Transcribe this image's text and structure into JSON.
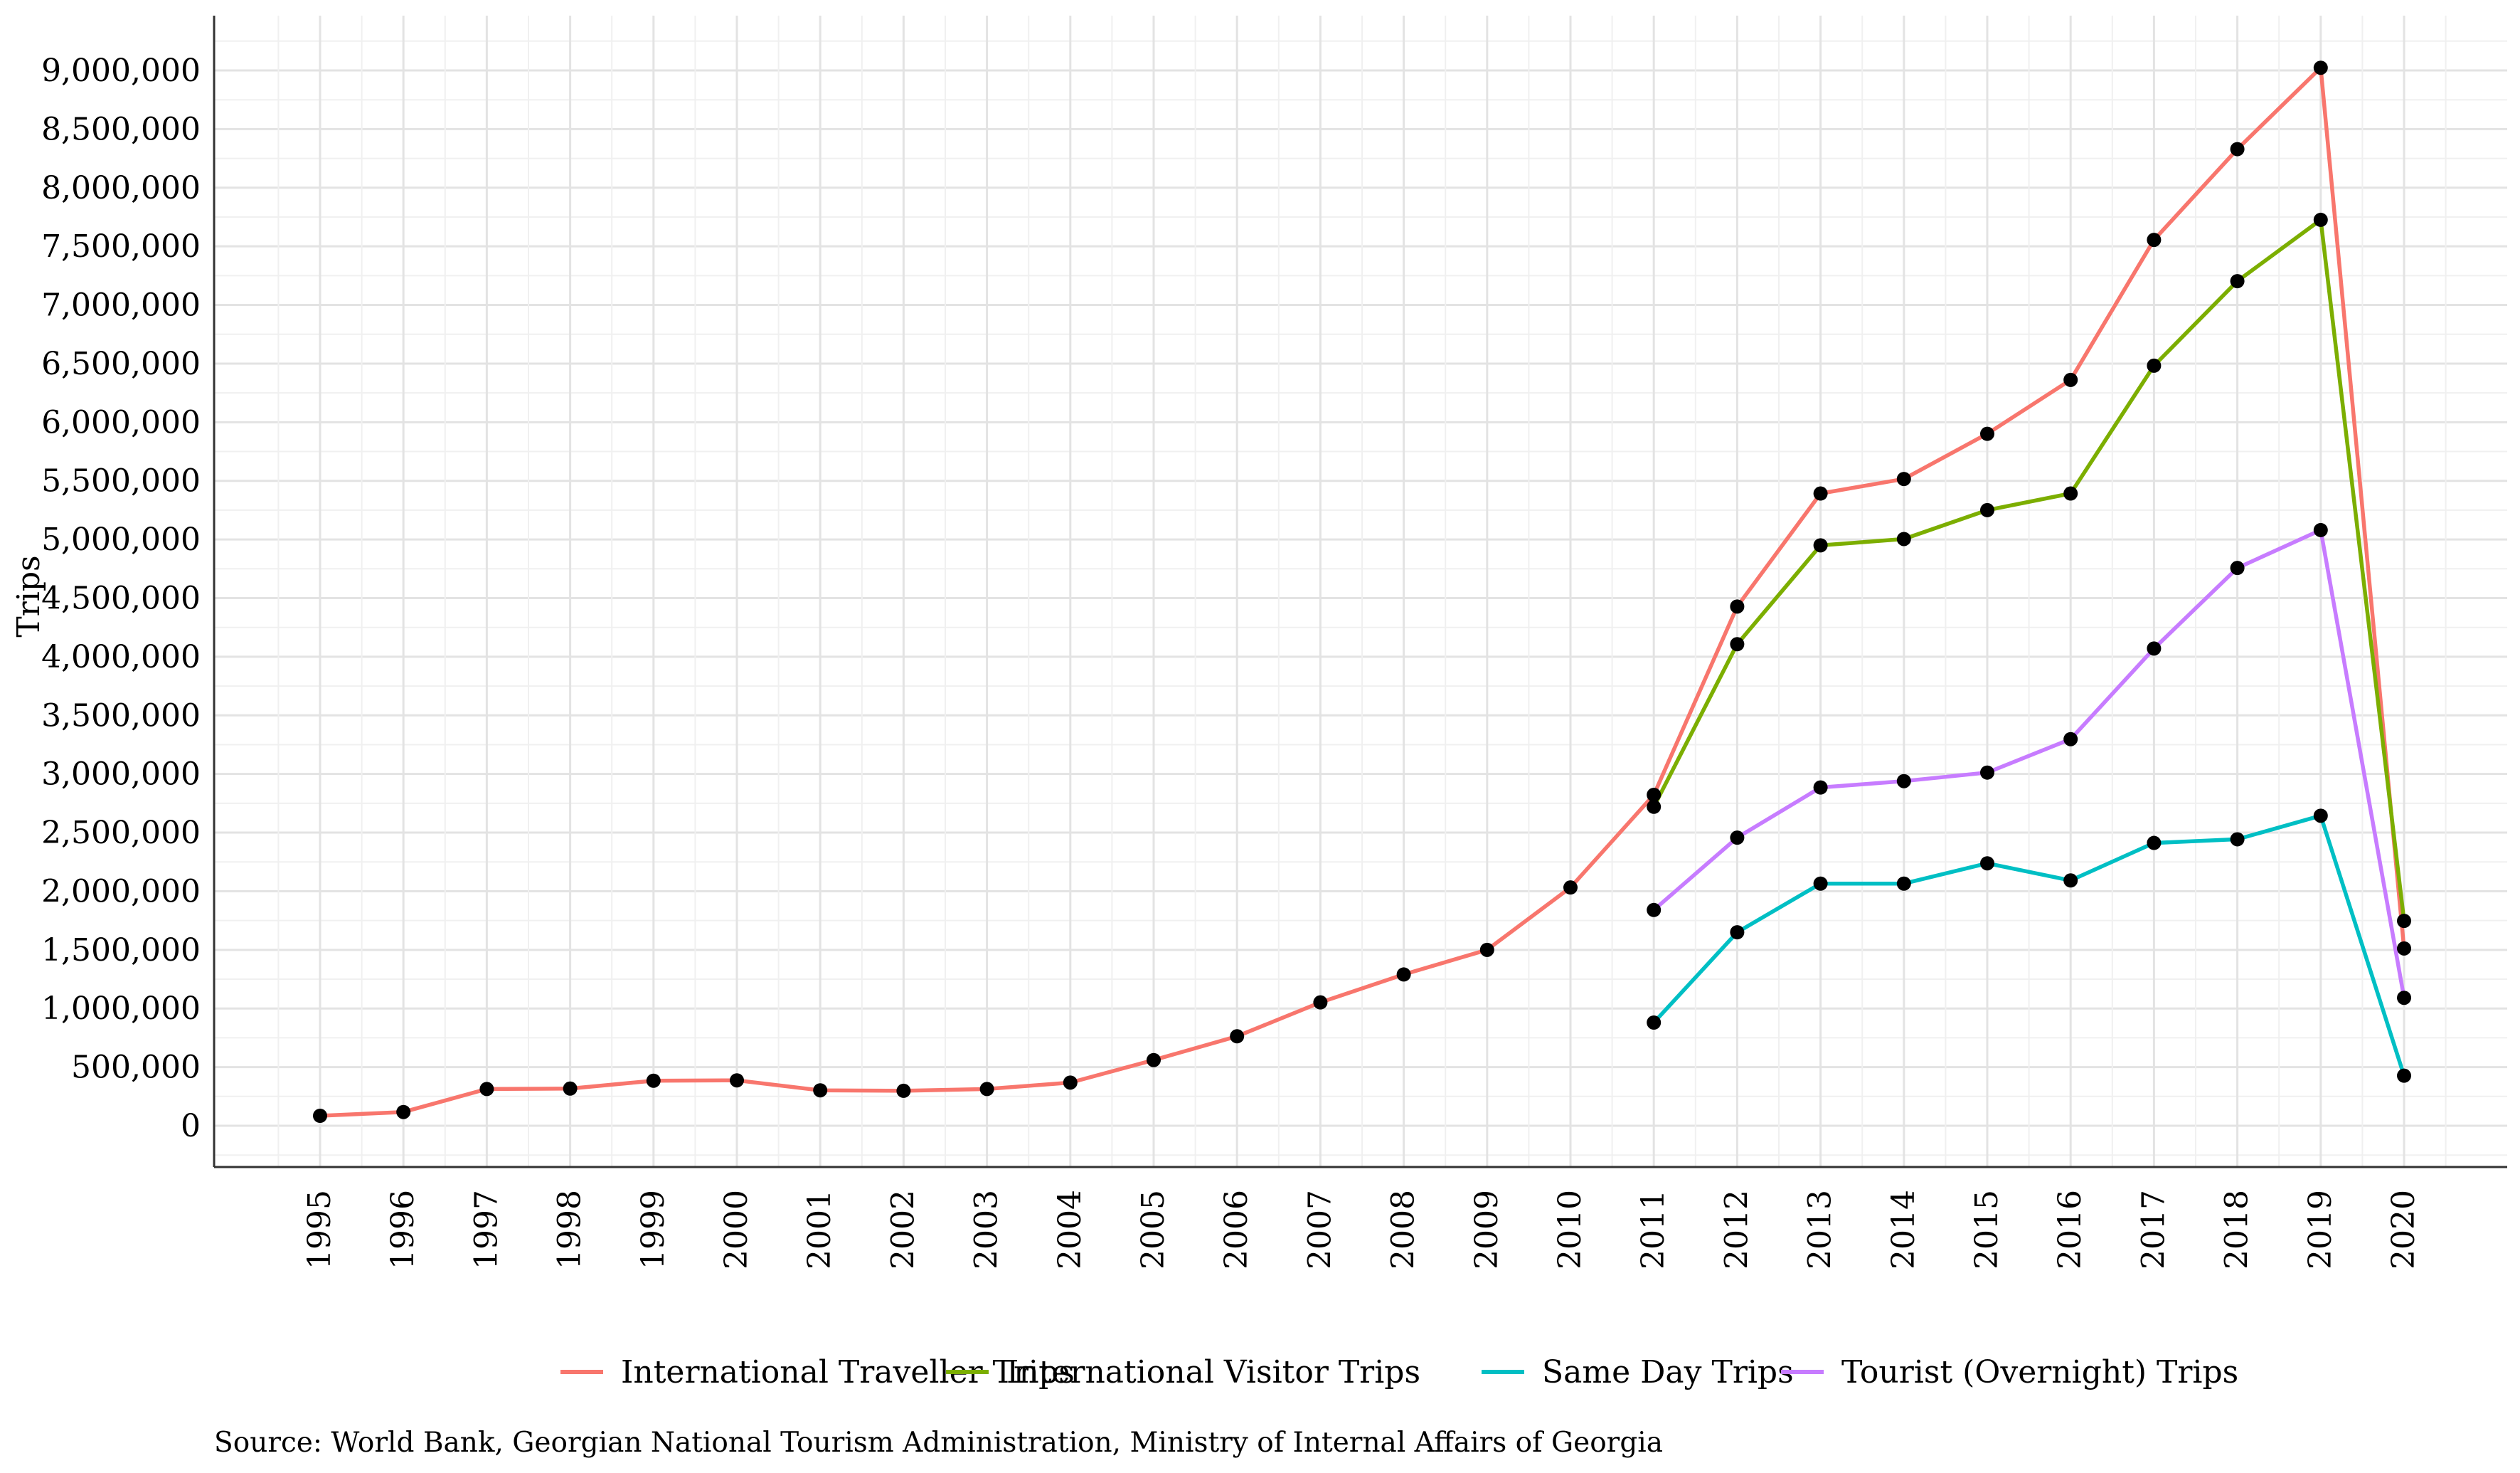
{
  "chart_data": {
    "type": "line",
    "title": "",
    "xlabel": "",
    "ylabel": "Trips",
    "ylim": [
      0,
      9000000
    ],
    "y_ticks": [
      0,
      500000,
      1000000,
      1500000,
      2000000,
      2500000,
      3000000,
      3500000,
      4000000,
      4500000,
      5000000,
      5500000,
      6000000,
      6500000,
      7000000,
      7500000,
      8000000,
      8500000,
      9000000
    ],
    "y_tick_labels": [
      "0",
      "500,000",
      "1,000,000",
      "1,500,000",
      "2,000,000",
      "2,500,000",
      "3,000,000",
      "3,500,000",
      "4,000,000",
      "4,500,000",
      "5,000,000",
      "5,500,000",
      "6,000,000",
      "6,500,000",
      "7,000,000",
      "7,500,000",
      "8,000,000",
      "8,500,000",
      "9,000,000"
    ],
    "x": [
      "1995",
      "1996",
      "1997",
      "1998",
      "1999",
      "2000",
      "2001",
      "2002",
      "2003",
      "2004",
      "2005",
      "2006",
      "2007",
      "2008",
      "2009",
      "2010",
      "2011",
      "2012",
      "2013",
      "2014",
      "2015",
      "2016",
      "2017",
      "2018",
      "2019",
      "2020"
    ],
    "grid": true,
    "legend_position": "bottom",
    "point_color": "#000000",
    "series": [
      {
        "name": "International Traveller Trips",
        "color": "#F8766D",
        "values": [
          85000,
          117000,
          313000,
          317000,
          384000,
          387000,
          302000,
          298000,
          313000,
          368000,
          560000,
          763000,
          1052000,
          1290000,
          1500000,
          2032000,
          2822000,
          4428000,
          5392000,
          5516000,
          5901000,
          6361000,
          7555000,
          8329000,
          9023000,
          1512000
        ]
      },
      {
        "name": "International Visitor Trips",
        "color": "#7CAE00",
        "values": [
          null,
          null,
          null,
          null,
          null,
          null,
          null,
          null,
          null,
          null,
          null,
          null,
          null,
          null,
          null,
          null,
          2720000,
          4107000,
          4950000,
          5004000,
          5250000,
          5392000,
          6482000,
          7203000,
          7726000,
          1747000
        ]
      },
      {
        "name": "Same Day Trips",
        "color": "#00BFC4",
        "values": [
          null,
          null,
          null,
          null,
          null,
          null,
          null,
          null,
          null,
          null,
          null,
          null,
          null,
          null,
          null,
          null,
          880000,
          1650000,
          2065000,
          2065000,
          2238000,
          2092000,
          2412000,
          2443000,
          2644000,
          427000
        ]
      },
      {
        "name": "Tourist (Overnight) Trips",
        "color": "#C77CFF",
        "values": [
          null,
          null,
          null,
          null,
          null,
          null,
          null,
          null,
          null,
          null,
          null,
          null,
          null,
          null,
          null,
          null,
          1840000,
          2457000,
          2885000,
          2939000,
          3012000,
          3297000,
          4070000,
          4757000,
          5080000,
          1091000
        ]
      }
    ],
    "caption": "Source: World Bank, Georgian National Tourism Administration, Ministry of Internal Affairs of Georgia"
  }
}
